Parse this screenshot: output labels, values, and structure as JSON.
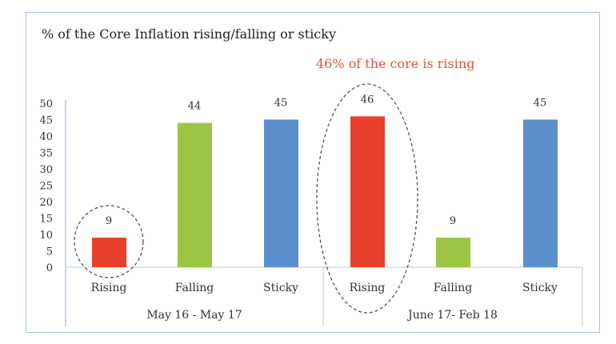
{
  "chart_data": {
    "type": "bar",
    "title": "% of the Core Inflation rising/falling or sticky",
    "annotation": "46% of the core is rising",
    "groups": [
      {
        "label": "May 16 - May 17",
        "categories": [
          "Rising",
          "Falling",
          "Sticky"
        ],
        "values": [
          9,
          44,
          45
        ]
      },
      {
        "label": "June 17- Feb 18",
        "categories": [
          "Rising",
          "Falling",
          "Sticky"
        ],
        "values": [
          46,
          9,
          45
        ]
      }
    ],
    "colors": {
      "Rising": "#e8402a",
      "Falling": "#9dc544",
      "Sticky": "#5b8fcb"
    },
    "ylim": [
      0,
      50
    ],
    "yticks": [
      0,
      5,
      10,
      15,
      20,
      25,
      30,
      35,
      40,
      45,
      50
    ],
    "grid": false,
    "highlighted": [
      "May 16 - May 17 / Rising",
      "June 17- Feb 18 / Rising"
    ]
  }
}
